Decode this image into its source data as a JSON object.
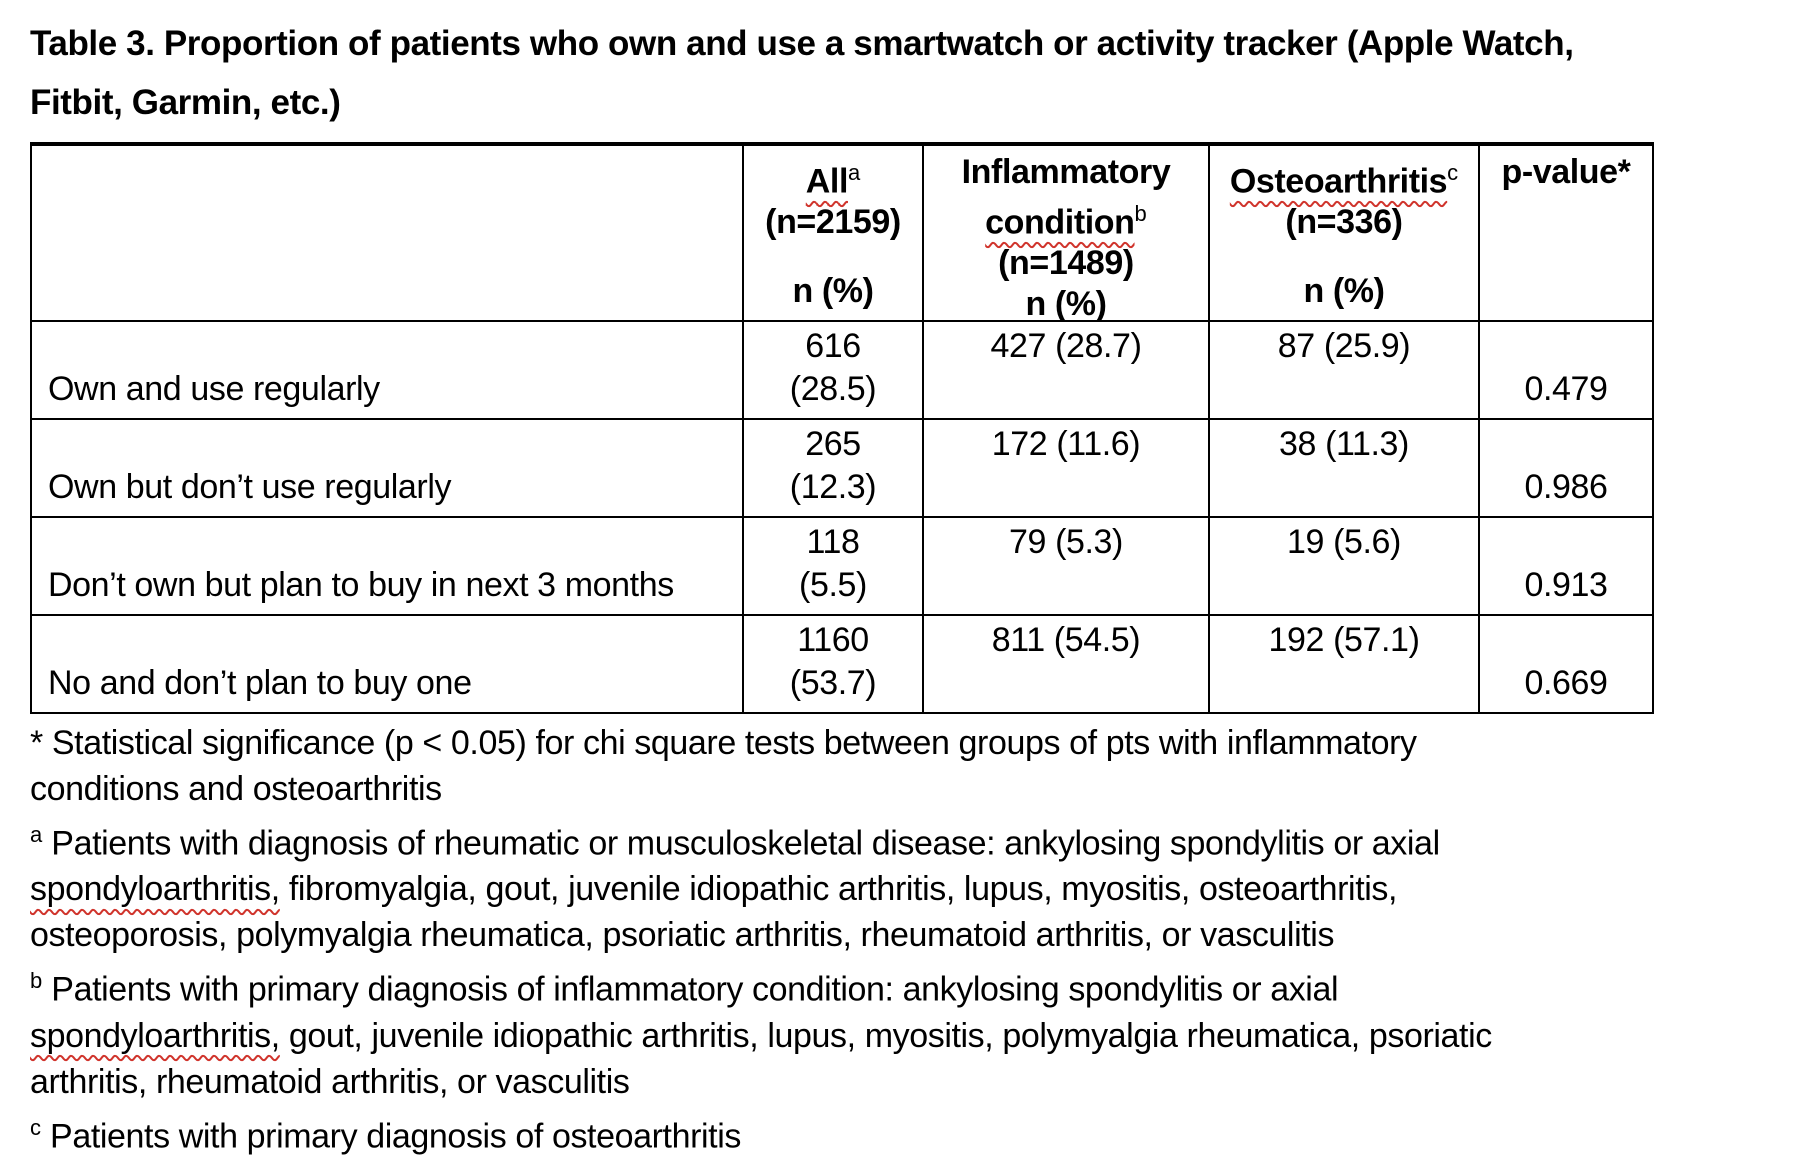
{
  "title": {
    "lines": [
      "Table 3. Proportion of patients who own and use a smartwatch or activity tracker (Apple Watch,",
      "Fitbit, Garmin, etc.)"
    ]
  },
  "table": {
    "header": {
      "row_label_column": "",
      "all": {
        "word": "All",
        "sup": "a",
        "n": "(n=2159)",
        "stat_label": "n (%)"
      },
      "inflammatory": {
        "word1": "Inflammatory",
        "word2": "condition",
        "sup": "b",
        "n": "(n=1489)",
        "stat_label": "n (%)"
      },
      "osteoarthritis": {
        "word": "Osteoarthritis",
        "sup": "c",
        "n": "(n=336)",
        "stat_label": "n (%)"
      },
      "pvalue": {
        "label": "p-value*"
      }
    },
    "rows": [
      {
        "label": "Own and use regularly",
        "all_n": "616",
        "all_pct": "(28.5)",
        "inflammatory": "427 (28.7)",
        "osteoarthritis": "87 (25.9)",
        "p_value": "0.479"
      },
      {
        "label": "Own but don’t use regularly",
        "all_n": "265",
        "all_pct": "(12.3)",
        "inflammatory": "172 (11.6)",
        "osteoarthritis": "38 (11.3)",
        "p_value": "0.986"
      },
      {
        "label": "Don’t own but plan to buy in next 3 months",
        "all_n": "118",
        "all_pct": "(5.5)",
        "inflammatory": "79 (5.3)",
        "osteoarthritis": "19 (5.6)",
        "p_value": "0.913"
      },
      {
        "label": "No and don’t plan to buy one",
        "all_n": "1160",
        "all_pct": "(53.7)",
        "inflammatory": "811 (54.5)",
        "osteoarthritis": "192 (57.1)",
        "p_value": "0.669"
      }
    ]
  },
  "footnotes": [
    {
      "id": "footnote-significance",
      "lines": [
        [
          {
            "t": "* Statistical significance (p < 0.05) for chi square tests between groups of pts with inflammatory"
          }
        ],
        [
          {
            "t": "conditions and osteoarthritis"
          }
        ]
      ]
    },
    {
      "id": "footnote-a",
      "lines": [
        [
          {
            "t": "a",
            "sup": true
          },
          {
            "t": " Patients with diagnosis of rheumatic or musculoskeletal disease: ankylosing spondylitis or axial"
          }
        ],
        [
          {
            "t": "spondyloarthritis,",
            "sq": true
          },
          {
            "t": " fibromyalgia, gout, juvenile idiopathic arthritis, lupus, myositis, osteoarthritis,"
          }
        ],
        [
          {
            "t": "osteoporosis, polymyalgia rheumatica, psoriatic arthritis, rheumatoid arthritis, or vasculitis"
          }
        ]
      ]
    },
    {
      "id": "footnote-b",
      "lines": [
        [
          {
            "t": "b",
            "sup": true
          },
          {
            "t": " Patients with primary diagnosis of inflammatory condition: ankylosing spondylitis or axial"
          }
        ],
        [
          {
            "t": "spondyloarthritis,",
            "sq": true
          },
          {
            "t": " gout, juvenile idiopathic arthritis, lupus, myositis, polymyalgia rheumatica, psoriatic"
          }
        ],
        [
          {
            "t": "arthritis, rheumatoid arthritis, or vasculitis"
          }
        ]
      ]
    },
    {
      "id": "footnote-c",
      "lines": [
        [
          {
            "t": "c",
            "sup": true
          },
          {
            "t": " Patients with primary diagnosis of osteoarthritis"
          }
        ]
      ]
    }
  ],
  "colors": {
    "text": "#000000",
    "background": "#ffffff",
    "border": "#000000",
    "spellcheck_red": "#d0342c"
  }
}
